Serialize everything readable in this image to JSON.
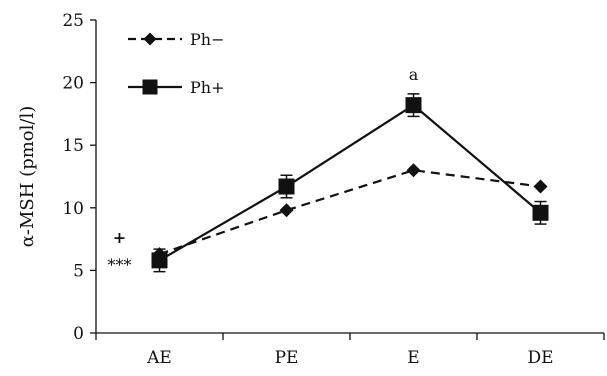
{
  "chart_data": {
    "type": "line",
    "categories": [
      "AE",
      "PE",
      "E",
      "DE"
    ],
    "ylabel": "α-MSH (pmol/l)",
    "ylim": [
      0,
      25
    ],
    "yticks": [
      0,
      5,
      10,
      15,
      20,
      25
    ],
    "grid": false,
    "legend_position": "top-left",
    "series": [
      {
        "name": "Ph−",
        "marker": "diamond",
        "line_style": "dashed",
        "values": [
          6.3,
          9.8,
          13.0,
          11.7
        ],
        "errors": [
          0,
          0,
          0,
          0
        ]
      },
      {
        "name": "Ph+",
        "marker": "square",
        "line_style": "solid",
        "values": [
          5.8,
          11.7,
          18.2,
          9.6
        ],
        "errors": [
          0.9,
          0.9,
          0.9,
          0.9
        ]
      }
    ],
    "annotations": [
      {
        "text": "a",
        "category": "E",
        "y": 20.2
      },
      {
        "text": "+",
        "category": "AE",
        "y": 7.2,
        "side": "left"
      },
      {
        "text": "***",
        "category": "AE",
        "y": 5.0,
        "side": "left"
      }
    ]
  }
}
